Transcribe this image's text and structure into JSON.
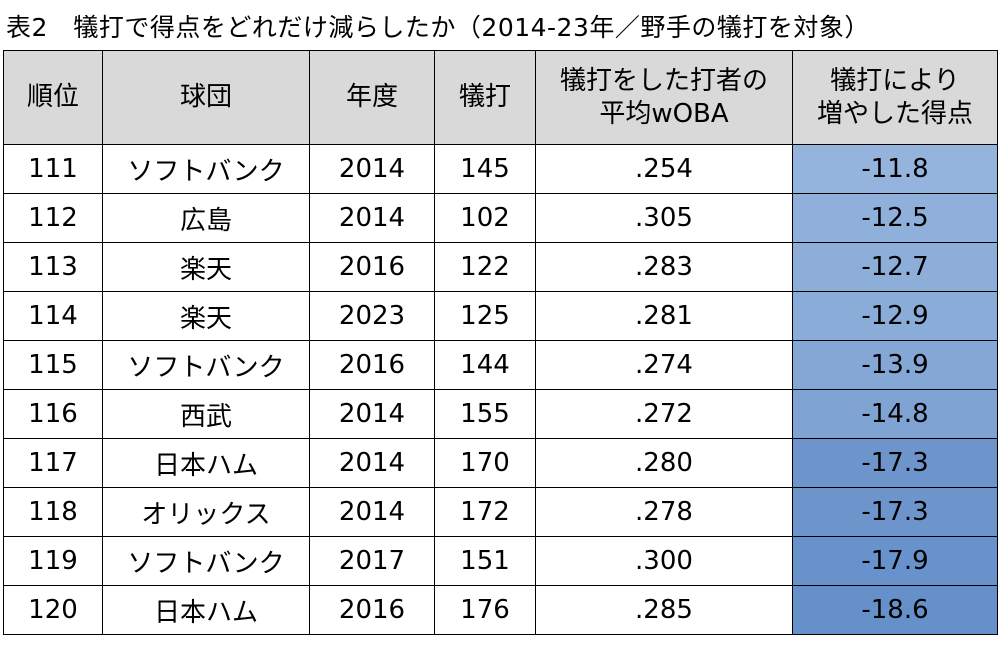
{
  "title": "表2　犠打で得点をどれだけ減らしたか（2014-23年／野手の犠打を対象）",
  "columns": {
    "rank": "順位",
    "team": "球団",
    "year": "年度",
    "sacrifice": "犠打",
    "woba_line1": "犠打をした打者の",
    "woba_line2": "平均wOBA",
    "runs_line1": "犠打により",
    "runs_line2": "増やした得点"
  },
  "colors": {
    "header_bg": "#d9d9d9",
    "gradient": [
      "#94b4dd",
      "#8fb0da",
      "#8daed9",
      "#8aacd8",
      "#84a7d6",
      "#7fa3d3",
      "#6d95cc",
      "#6d95cc",
      "#6892cb",
      "#6690ca"
    ]
  },
  "rows": [
    {
      "rank": "111",
      "team": "ソフトバンク",
      "year": "2014",
      "sacrifice": "145",
      "woba": ".254",
      "runs": "-11.8"
    },
    {
      "rank": "112",
      "team": "広島",
      "year": "2014",
      "sacrifice": "102",
      "woba": ".305",
      "runs": "-12.5"
    },
    {
      "rank": "113",
      "team": "楽天",
      "year": "2016",
      "sacrifice": "122",
      "woba": ".283",
      "runs": "-12.7"
    },
    {
      "rank": "114",
      "team": "楽天",
      "year": "2023",
      "sacrifice": "125",
      "woba": ".281",
      "runs": "-12.9"
    },
    {
      "rank": "115",
      "team": "ソフトバンク",
      "year": "2016",
      "sacrifice": "144",
      "woba": ".274",
      "runs": "-13.9"
    },
    {
      "rank": "116",
      "team": "西武",
      "year": "2014",
      "sacrifice": "155",
      "woba": ".272",
      "runs": "-14.8"
    },
    {
      "rank": "117",
      "team": "日本ハム",
      "year": "2014",
      "sacrifice": "170",
      "woba": ".280",
      "runs": "-17.3"
    },
    {
      "rank": "118",
      "team": "オリックス",
      "year": "2014",
      "sacrifice": "172",
      "woba": ".278",
      "runs": "-17.3"
    },
    {
      "rank": "119",
      "team": "ソフトバンク",
      "year": "2017",
      "sacrifice": "151",
      "woba": ".300",
      "runs": "-17.9"
    },
    {
      "rank": "120",
      "team": "日本ハム",
      "year": "2016",
      "sacrifice": "176",
      "woba": ".285",
      "runs": "-18.6"
    }
  ]
}
